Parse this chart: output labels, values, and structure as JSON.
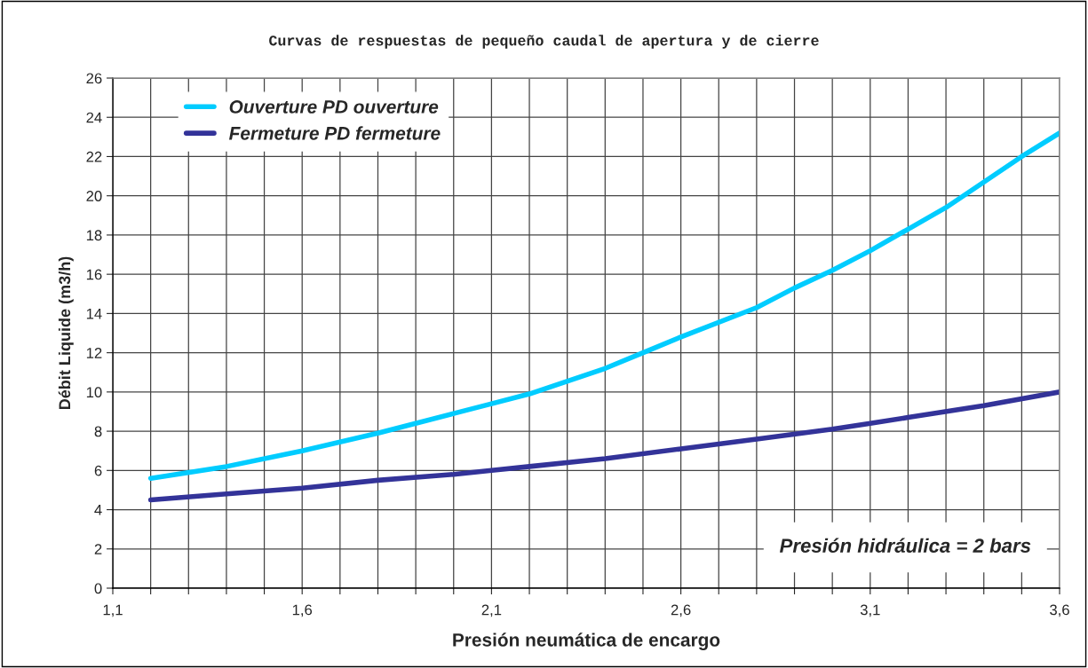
{
  "chart_data": {
    "type": "line",
    "title": "Curvas de respuestas de pequeño caudal de apertura y de cierre",
    "xlabel": "Presión neumática de encargo",
    "ylabel": "Débit Liquide (m3/h)",
    "annotations": [
      "Presión hidráulica = 2 bars"
    ],
    "series": [
      {
        "name": "Ouverture PD ouverture",
        "color": "#00ccff",
        "x": [
          1.2,
          1.4,
          1.6,
          1.8,
          2.0,
          2.1,
          2.2,
          2.4,
          2.5,
          2.6,
          2.8,
          2.9,
          3.0,
          3.1,
          3.2,
          3.3,
          3.4,
          3.5,
          3.6
        ],
        "values": [
          5.6,
          6.2,
          7.0,
          7.9,
          8.9,
          9.4,
          9.9,
          11.2,
          12.0,
          12.8,
          14.3,
          15.3,
          16.2,
          17.2,
          18.3,
          19.4,
          20.7,
          22.0,
          23.2
        ]
      },
      {
        "name": "Fermeture PD fermeture",
        "color": "#333399",
        "x": [
          1.2,
          1.4,
          1.6,
          1.8,
          2.0,
          2.1,
          2.2,
          2.4,
          2.6,
          2.8,
          3.0,
          3.1,
          3.2,
          3.4,
          3.6
        ],
        "values": [
          4.5,
          4.8,
          5.1,
          5.5,
          5.8,
          6.0,
          6.2,
          6.6,
          7.1,
          7.6,
          8.1,
          8.4,
          8.7,
          9.3,
          10.0
        ]
      }
    ],
    "xlim": [
      1.1,
      3.6
    ],
    "xticks": [
      {
        "value": 1.1,
        "label": "1,1"
      },
      {
        "value": 1.2,
        "label": null
      },
      {
        "value": 1.3,
        "label": null
      },
      {
        "value": 1.4,
        "label": null
      },
      {
        "value": 1.5,
        "label": null
      },
      {
        "value": 1.6,
        "label": "1,6"
      },
      {
        "value": 1.7,
        "label": null
      },
      {
        "value": 1.8,
        "label": null
      },
      {
        "value": 1.9,
        "label": null
      },
      {
        "value": 2.0,
        "label": null
      },
      {
        "value": 2.1,
        "label": "2,1"
      },
      {
        "value": 2.2,
        "label": null
      },
      {
        "value": 2.3,
        "label": null
      },
      {
        "value": 2.4,
        "label": null
      },
      {
        "value": 2.5,
        "label": null
      },
      {
        "value": 2.6,
        "label": "2,6"
      },
      {
        "value": 2.7,
        "label": null
      },
      {
        "value": 2.8,
        "label": null
      },
      {
        "value": 2.9,
        "label": null
      },
      {
        "value": 3.0,
        "label": null
      },
      {
        "value": 3.1,
        "label": "3,1"
      },
      {
        "value": 3.2,
        "label": null
      },
      {
        "value": 3.3,
        "label": null
      },
      {
        "value": 3.4,
        "label": null
      },
      {
        "value": 3.5,
        "label": null
      },
      {
        "value": 3.6,
        "label": "3,6"
      }
    ],
    "ylim": [
      0,
      26
    ],
    "yticks": [
      0,
      2,
      4,
      6,
      8,
      10,
      12,
      14,
      16,
      18,
      20,
      22,
      24,
      26
    ],
    "grid": true,
    "legend": "top left",
    "marker": "none",
    "line_style": "solid"
  }
}
